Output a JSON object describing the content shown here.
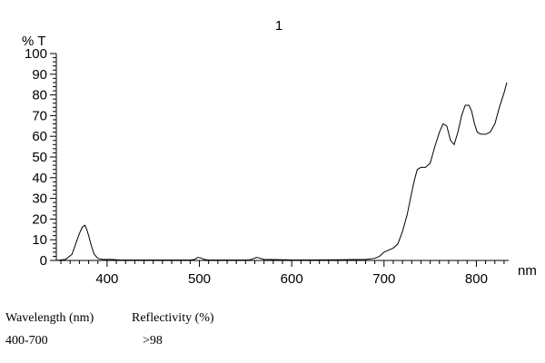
{
  "chart_data": {
    "type": "line",
    "title": "1",
    "ylabel": "% T",
    "xlabel": "nm",
    "xlim": [
      345,
      835
    ],
    "ylim": [
      0,
      100
    ],
    "x_ticks": [
      400,
      500,
      600,
      700,
      800
    ],
    "y_ticks": [
      0,
      10,
      20,
      30,
      40,
      50,
      60,
      70,
      80,
      90,
      100
    ],
    "grid": false,
    "series": [
      {
        "x": [
          345,
          355,
          362,
          366,
          370,
          373,
          376,
          378,
          380,
          383,
          386,
          390,
          395,
          400,
          405,
          410,
          415,
          420,
          490,
          495,
          498,
          502,
          505,
          510,
          530,
          545,
          550,
          555,
          558,
          562,
          565,
          570,
          585,
          590,
          595,
          600,
          650,
          680,
          690,
          695,
          700,
          705,
          710,
          715,
          720,
          725,
          730,
          733,
          736,
          740,
          745,
          750,
          755,
          760,
          764,
          768,
          772,
          776,
          780,
          784,
          788,
          792,
          795,
          798,
          801,
          805,
          810,
          815,
          820,
          825,
          830,
          833
        ],
        "y": [
          0,
          0.5,
          3,
          8,
          13,
          16,
          17,
          15,
          12,
          7,
          3,
          1,
          0.5,
          0.5,
          0.5,
          0.3,
          0.2,
          0.2,
          0.2,
          0.5,
          1.5,
          1.2,
          0.5,
          0.2,
          0.2,
          0.2,
          0.2,
          0.3,
          0.8,
          1.5,
          1.2,
          0.5,
          0.4,
          0.3,
          0.3,
          0.2,
          0.3,
          0.5,
          1,
          2,
          4,
          5,
          6,
          8,
          14,
          22,
          33,
          39,
          44,
          45,
          45,
          47,
          55,
          62,
          66,
          65,
          58,
          56,
          62,
          70,
          75,
          75,
          72,
          66,
          62,
          61,
          61,
          62,
          66,
          74,
          81,
          86
        ]
      }
    ]
  },
  "table": {
    "header_wavelength": "Wavelength (nm)",
    "header_reflectivity": "Reflectivity (%)",
    "row_wavelength": "400-700",
    "row_reflectivity": ">98"
  }
}
